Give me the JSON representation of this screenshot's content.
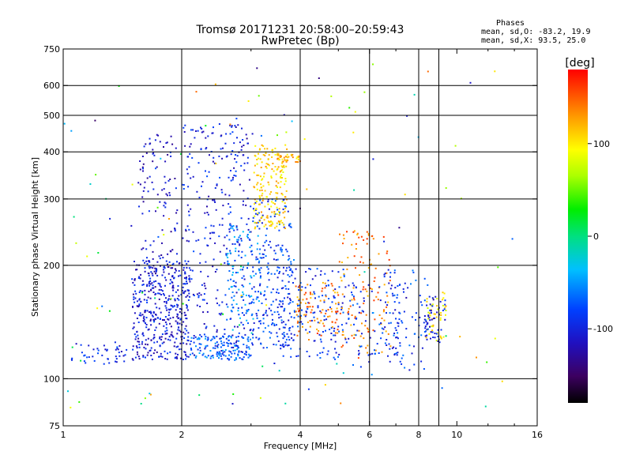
{
  "title": "Tromsø 20171231 20:58:00–20:59:43",
  "subtitle": "RwPretec (Bp)",
  "stats": {
    "heading": "Phases",
    "line_o": "mean, sd,O: -83.2, 19.9",
    "line_x": "mean, sd,X:  93.5, 25.0"
  },
  "chart_data": {
    "type": "scatter",
    "title": "Tromsø 20171231 20:58:00–20:59:43",
    "subtitle": "RwPretec (Bp)",
    "xlabel": "Frequency [MHz]",
    "ylabel": "Stationary phase Virtual Height [km]",
    "x_scale": "log",
    "y_scale": "log",
    "xlim": [
      1,
      16
    ],
    "ylim": [
      75,
      750
    ],
    "x_ticks": [
      1,
      2,
      4,
      6,
      8,
      10,
      16
    ],
    "x_tick_labels": [
      "1",
      "2",
      "4",
      "6",
      "8",
      "10",
      "16"
    ],
    "y_ticks": [
      75,
      100,
      200,
      300,
      400,
      500,
      600,
      750
    ],
    "y_tick_labels": [
      "75",
      "100",
      "200",
      "300",
      "400",
      "500",
      "600",
      "750"
    ],
    "x_grid": [
      2,
      4,
      6,
      8,
      9
    ],
    "y_grid": [
      100,
      200,
      300,
      400,
      500,
      600
    ],
    "grid": true,
    "colorbar": {
      "label": "[deg]",
      "range": [
        -180,
        180
      ],
      "ticks": [
        100,
        0,
        -100
      ],
      "tick_labels": [
        "100",
        "0",
        "-100"
      ]
    },
    "clusters": [
      {
        "x": [
          1.05,
          1.45
        ],
        "y": [
          108,
          125
        ],
        "phase": -95,
        "count": 45
      },
      {
        "x": [
          1.5,
          2.1
        ],
        "y": [
          112,
          210
        ],
        "phase": -105,
        "count": 380
      },
      {
        "x": [
          1.55,
          1.95
        ],
        "y": [
          125,
          450
        ],
        "phase": -110,
        "count": 150
      },
      {
        "x": [
          2.0,
          3.0
        ],
        "y": [
          115,
          480
        ],
        "phase": -100,
        "count": 320
      },
      {
        "x": [
          2.1,
          3.0
        ],
        "y": [
          112,
          130
        ],
        "phase": -70,
        "count": 140
      },
      {
        "x": [
          2.6,
          3.2
        ],
        "y": [
          140,
          260
        ],
        "phase": -60,
        "count": 110
      },
      {
        "x": [
          3.0,
          3.8
        ],
        "y": [
          120,
          300
        ],
        "phase": -85,
        "count": 220
      },
      {
        "x": [
          3.05,
          3.7
        ],
        "y": [
          250,
          420
        ],
        "phase": 110,
        "count": 180
      },
      {
        "x": [
          3.5,
          4.0
        ],
        "y": [
          375,
          395
        ],
        "phase": 120,
        "count": 40
      },
      {
        "x": [
          3.6,
          5.2
        ],
        "y": [
          112,
          200
        ],
        "phase": -90,
        "count": 160
      },
      {
        "x": [
          3.9,
          5.0
        ],
        "y": [
          130,
          180
        ],
        "phase": 140,
        "count": 90
      },
      {
        "x": [
          5.0,
          6.8
        ],
        "y": [
          112,
          250
        ],
        "phase": 140,
        "count": 120
      },
      {
        "x": [
          5.2,
          7.2
        ],
        "y": [
          115,
          180
        ],
        "phase": -90,
        "count": 90
      },
      {
        "x": [
          6.5,
          8.5
        ],
        "y": [
          105,
          200
        ],
        "phase": -85,
        "count": 80
      },
      {
        "x": [
          8.3,
          9.4
        ],
        "y": [
          125,
          170
        ],
        "phase": 100,
        "count": 45
      },
      {
        "x": [
          8.3,
          9.4
        ],
        "y": [
          125,
          170
        ],
        "phase": -100,
        "count": 50
      },
      {
        "x": [
          1.0,
          14.0
        ],
        "y": [
          80,
          700
        ],
        "phase": 0,
        "count": 130
      }
    ]
  }
}
